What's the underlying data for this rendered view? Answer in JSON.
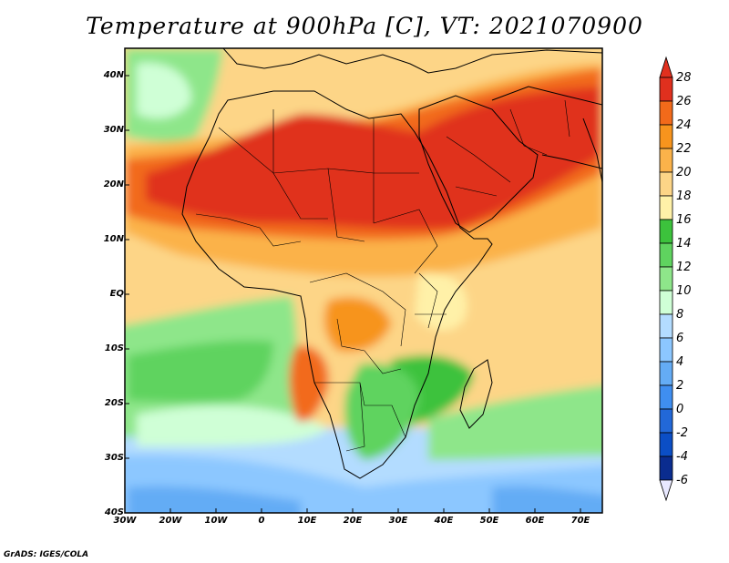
{
  "title": "Temperature at 900hPa [C], VT: 2021070900",
  "credit": "GrADS: IGES/COLA",
  "lat_labels": [
    "40N",
    "30N",
    "20N",
    "10N",
    "EQ",
    "10S",
    "20S",
    "30S",
    "40S"
  ],
  "lon_labels": [
    "30W",
    "20W",
    "10W",
    "0",
    "10E",
    "20E",
    "30E",
    "40E",
    "50E",
    "60E",
    "70E"
  ],
  "colorbar": {
    "labels": [
      "28",
      "26",
      "24",
      "22",
      "20",
      "18",
      "16",
      "14",
      "12",
      "10",
      "8",
      "6",
      "4",
      "2",
      "0",
      "-2",
      "-4",
      "-6"
    ],
    "colors": [
      "#e0301e",
      "#f26a1a",
      "#f7941d",
      "#fbb24a",
      "#fdd587",
      "#fff1a8",
      "#3cc23c",
      "#5fd35f",
      "#8ee68a",
      "#cfffd6",
      "#b3dcff",
      "#8cc7ff",
      "#64acf5",
      "#3f8ef0",
      "#2268d8",
      "#0b4ec5",
      "#0a2c8f",
      "#e8e8ff"
    ]
  },
  "map_colors": {
    "hot": "#e0301e",
    "very_warm": "#f26a1a",
    "warm": "#f7941d",
    "mild_warm": "#fbb24a",
    "mild": "#fdd587",
    "light": "#fff1a8",
    "green_dark": "#3cc23c",
    "green": "#5fd35f",
    "green_light": "#8ee68a",
    "pale": "#cfffd6",
    "blue_light": "#b3dcff",
    "blue": "#8cc7ff",
    "blue_mid": "#64acf5"
  }
}
